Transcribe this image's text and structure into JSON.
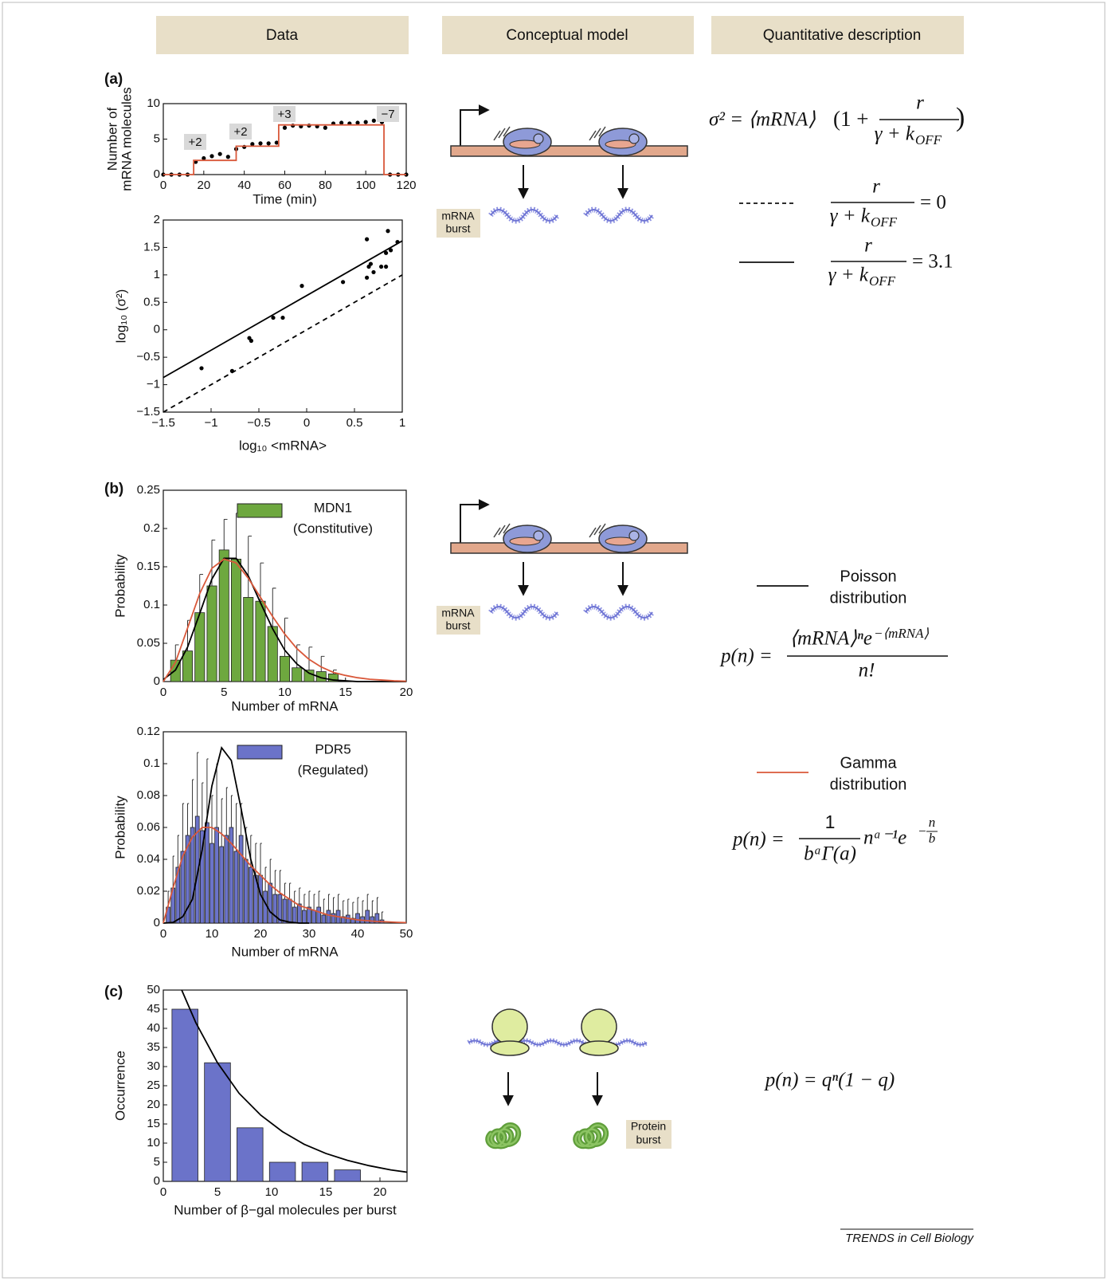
{
  "headers": [
    "Data",
    "Conceptual model",
    "Quantitative description"
  ],
  "panel_labels": [
    "(a)",
    "(b)",
    "(c)"
  ],
  "diagram_labels": [
    [
      "mRNA",
      "burst"
    ],
    [
      "mRNA",
      "burst"
    ],
    [
      "Protein",
      "burst"
    ]
  ],
  "equations": {
    "a_variance": {
      "lhs": "σ² = ⟨mRNA⟩",
      "open": "(1 +",
      "num": "r",
      "den": "γ + k",
      "den_sub": "OFF",
      "close": ")"
    },
    "a_dashed": {
      "num": "r",
      "den": "γ + k",
      "den_sub": "OFF",
      "rhs": "= 0"
    },
    "a_solid": {
      "num": "r",
      "den": "γ + k",
      "den_sub": "OFF",
      "rhs": "= 3.1"
    },
    "poisson": {
      "name": [
        "Poisson",
        "distribution"
      ],
      "lhs": "p(n) =",
      "num": "⟨mRNA⟩ⁿe",
      "num_sup": "−⟨mRNA⟩",
      "den": "n!"
    },
    "gamma": {
      "name": [
        "Gamma",
        "distribution"
      ],
      "lhs": "p(n) =",
      "num": "1",
      "den": "bᵃΓ(a)",
      "tail": "nᵃ⁻¹e",
      "exp_sign": "−",
      "exp_num": "n",
      "exp_den": "b"
    },
    "geometric": "p(n) = qⁿ(1 − q)"
  },
  "credit": "TRENDS in Cell Biology",
  "chart_data": [
    {
      "type": "line",
      "ylabel": [
        "Number of",
        "mRNA molecules"
      ],
      "xlabel": "Time (min)",
      "xlim": [
        0,
        120
      ],
      "ylim": [
        0,
        10
      ],
      "xticks": [
        0,
        20,
        40,
        60,
        80,
        100,
        120
      ],
      "yticks": [
        0,
        5,
        10
      ],
      "grid": false,
      "annotations": [
        "+2",
        "+2",
        "+3",
        "−7"
      ],
      "series": [
        {
          "kind": "scatter",
          "color": "#000000",
          "x": [
            0,
            4,
            8,
            12,
            16,
            20,
            24,
            28,
            32,
            36,
            40,
            44,
            48,
            52,
            56,
            60,
            64,
            68,
            72,
            76,
            80,
            84,
            88,
            92,
            96,
            100,
            104,
            108,
            112,
            116,
            120
          ],
          "values": [
            0,
            0,
            0,
            0,
            1.8,
            2.3,
            2.6,
            2.9,
            2.5,
            3.6,
            3.9,
            4.3,
            4.4,
            4.4,
            4.5,
            6.6,
            6.9,
            6.8,
            6.9,
            6.8,
            6.6,
            7.2,
            7.3,
            7.2,
            7.3,
            7.4,
            7.6,
            7.4,
            0,
            0,
            0
          ]
        },
        {
          "color": "#d9583a",
          "x": [
            0,
            15,
            15,
            36,
            36,
            57,
            57,
            109,
            109,
            120
          ],
          "values": [
            0,
            0,
            2,
            2,
            4,
            4,
            7,
            7,
            0,
            0
          ]
        }
      ]
    },
    {
      "type": "scatter",
      "ylabel": [
        "log₁₀ (σ²)"
      ],
      "xlabel": "log₁₀ <mRNA>",
      "xlim": [
        -1.5,
        1
      ],
      "ylim": [
        -1.5,
        2
      ],
      "xticks": [
        {
          "value": -1.5,
          "label": "−1.5"
        },
        {
          "value": -1,
          "label": "−1"
        },
        {
          "value": -0.5,
          "label": "−0.5"
        },
        0,
        0.5,
        1
      ],
      "yticks": [
        {
          "value": -1.5,
          "label": "−1.5"
        },
        {
          "value": -1,
          "label": "−1"
        },
        {
          "value": -0.5,
          "label": "−0.5"
        },
        0,
        0.5,
        1,
        1.5,
        2
      ],
      "grid": false,
      "series": [
        {
          "color": "#000000",
          "x": [
            -1.1,
            -0.78,
            -0.6,
            -0.58,
            -0.35,
            -0.25,
            -0.05,
            0.38,
            0.63,
            0.63,
            0.65,
            0.67,
            0.7,
            0.78,
            0.83,
            0.83,
            0.85,
            0.88,
            0.95
          ],
          "values": [
            -0.7,
            -0.75,
            -0.15,
            -0.2,
            0.22,
            0.22,
            0.8,
            0.87,
            1.65,
            0.95,
            1.15,
            1.2,
            1.05,
            1.15,
            1.15,
            1.4,
            1.8,
            1.45,
            1.6
          ]
        },
        {
          "kind": "line",
          "color": "#000000",
          "x": [
            -1.5,
            1
          ],
          "values": [
            -0.87,
            1.62
          ]
        },
        {
          "kind": "line",
          "color": "#000000",
          "dashed": true,
          "x": [
            -1.5,
            1
          ],
          "values": [
            -1.5,
            1
          ]
        }
      ]
    },
    {
      "type": "bar",
      "ylabel": [
        "Probability"
      ],
      "xlabel": "Number of mRNA",
      "xlim": [
        0,
        20
      ],
      "ylim": [
        0,
        0.25
      ],
      "xticks": [
        0,
        5,
        10,
        15,
        20
      ],
      "yticks": [
        0,
        0.05,
        0.1,
        0.15,
        0.2,
        0.25
      ],
      "grid": false,
      "legend": "upper right",
      "legend_note": "(Constitutive)",
      "series": [
        {
          "name": "MDN1",
          "color": "#6ea83f",
          "x": [
            1,
            2,
            3,
            4,
            5,
            6,
            7,
            8,
            9,
            10,
            11,
            12,
            13,
            14
          ],
          "values": [
            0.028,
            0.04,
            0.09,
            0.125,
            0.172,
            0.16,
            0.11,
            0.105,
            0.072,
            0.033,
            0.018,
            0.015,
            0.013,
            0.01
          ],
          "errors": [
            0.02,
            0.04,
            0.05,
            0.06,
            0.04,
            0.06,
            0.08,
            0.05,
            0.05,
            0.05,
            0.03,
            0.03,
            0.02,
            0.005
          ]
        },
        {
          "kind": "line",
          "color": "#000000",
          "x": [
            0,
            1,
            2,
            3,
            4,
            5,
            6,
            7,
            8,
            9,
            10,
            11,
            12,
            13,
            14,
            15,
            16,
            17,
            18,
            19,
            20
          ],
          "values": [
            0.0025,
            0.015,
            0.045,
            0.089,
            0.134,
            0.161,
            0.161,
            0.138,
            0.103,
            0.069,
            0.041,
            0.023,
            0.011,
            0.005,
            0.002,
            0.001,
            0,
            0,
            0,
            0,
            0
          ]
        },
        {
          "kind": "line",
          "color": "#d9583a",
          "x": [
            0,
            1,
            2,
            3,
            4,
            5,
            6,
            7,
            8,
            9,
            10,
            11,
            12,
            13,
            14,
            15,
            16,
            17,
            18,
            19,
            20
          ],
          "values": [
            0,
            0.025,
            0.07,
            0.115,
            0.148,
            0.16,
            0.155,
            0.135,
            0.11,
            0.085,
            0.062,
            0.043,
            0.029,
            0.019,
            0.012,
            0.008,
            0.005,
            0.003,
            0.002,
            0.001,
            0.0005
          ]
        }
      ]
    },
    {
      "type": "bar",
      "ylabel": [
        "Probability"
      ],
      "xlabel": "Number of mRNA",
      "xlim": [
        0,
        50
      ],
      "ylim": [
        0,
        0.12
      ],
      "xticks": [
        0,
        10,
        20,
        30,
        40,
        50
      ],
      "yticks": [
        0,
        0.02,
        0.04,
        0.06,
        0.08,
        0.1,
        0.12
      ],
      "grid": false,
      "legend": "upper right",
      "legend_note": "(Regulated)",
      "series": [
        {
          "name": "PDR5",
          "color": "#6b73c9",
          "x": [
            1,
            2,
            3,
            4,
            5,
            6,
            7,
            8,
            9,
            10,
            11,
            12,
            13,
            14,
            15,
            16,
            17,
            18,
            19,
            20,
            21,
            22,
            23,
            24,
            25,
            26,
            27,
            28,
            29,
            30,
            31,
            32,
            33,
            34,
            35,
            36,
            37,
            38,
            39,
            40,
            41,
            42,
            43,
            44,
            45
          ],
          "values": [
            0.01,
            0.022,
            0.035,
            0.045,
            0.055,
            0.06,
            0.067,
            0.058,
            0.063,
            0.05,
            0.06,
            0.048,
            0.055,
            0.06,
            0.045,
            0.055,
            0.04,
            0.035,
            0.03,
            0.03,
            0.02,
            0.025,
            0.018,
            0.018,
            0.015,
            0.015,
            0.01,
            0.012,
            0.008,
            0.01,
            0.008,
            0.01,
            0.005,
            0.008,
            0.006,
            0.008,
            0.004,
            0.005,
            0.003,
            0.006,
            0.004,
            0.008,
            0.004,
            0.006,
            0.002
          ],
          "errors": [
            0.01,
            0.02,
            0.02,
            0.03,
            0.02,
            0.03,
            0.04,
            0.03,
            0.04,
            0.03,
            0.04,
            0.03,
            0.03,
            0.02,
            0.03,
            0.02,
            0.02,
            0.02,
            0.02,
            0.02,
            0.015,
            0.015,
            0.015,
            0.015,
            0.01,
            0.01,
            0.01,
            0.01,
            0.01,
            0.01,
            0.01,
            0.01,
            0.01,
            0.01,
            0.01,
            0.01,
            0.01,
            0.01,
            0.01,
            0.01,
            0.01,
            0.01,
            0.01,
            0.01,
            0.005
          ]
        },
        {
          "kind": "line",
          "color": "#000000",
          "x": [
            0,
            2,
            4,
            6,
            8,
            10,
            12,
            14,
            16,
            18,
            20,
            22,
            24,
            26,
            28,
            30
          ],
          "values": [
            0,
            0.0004,
            0.004,
            0.015,
            0.046,
            0.086,
            0.11,
            0.102,
            0.072,
            0.04,
            0.018,
            0.007,
            0.002,
            0.0006,
            0,
            0
          ]
        },
        {
          "kind": "line",
          "color": "#d9583a",
          "x": [
            0,
            2,
            4,
            6,
            8,
            10,
            12,
            14,
            16,
            18,
            20,
            22,
            24,
            26,
            28,
            30,
            32,
            34,
            36,
            38,
            40,
            42,
            44,
            46,
            48,
            50
          ],
          "values": [
            0,
            0.022,
            0.042,
            0.054,
            0.06,
            0.06,
            0.056,
            0.05,
            0.043,
            0.036,
            0.03,
            0.024,
            0.019,
            0.015,
            0.011,
            0.009,
            0.007,
            0.005,
            0.004,
            0.003,
            0.002,
            0.0015,
            0.001,
            0.0008,
            0.0005,
            0.0003
          ]
        }
      ]
    },
    {
      "type": "bar",
      "ylabel": [
        "Occurrence"
      ],
      "xlabel": "Number of β−gal molecules per burst",
      "xlim": [
        0,
        22.5
      ],
      "ylim": [
        0,
        50
      ],
      "xticks": [
        0,
        5,
        10,
        15,
        20
      ],
      "yticks": [
        0,
        5,
        10,
        15,
        20,
        25,
        30,
        35,
        40,
        45,
        50
      ],
      "grid": false,
      "series": [
        {
          "color": "#6b73c9",
          "x": [
            2,
            5,
            8,
            11,
            14,
            17
          ],
          "values": [
            45,
            31,
            14,
            5,
            5,
            3
          ]
        },
        {
          "kind": "line",
          "color": "#000000",
          "x": [
            1.7,
            3,
            5,
            7,
            9,
            11,
            13,
            15,
            17,
            19,
            21,
            22.5
          ],
          "values": [
            50,
            41.5,
            31,
            23,
            17.3,
            13,
            9.7,
            7.3,
            5.5,
            4.1,
            3.0,
            2.4
          ]
        }
      ]
    }
  ]
}
